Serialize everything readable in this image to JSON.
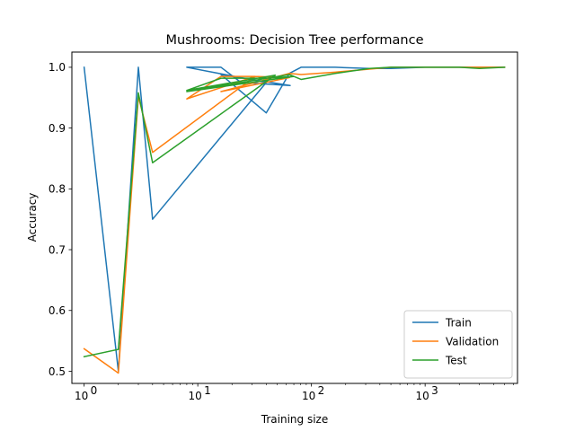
{
  "chart_data": {
    "type": "line",
    "title": "Mushrooms: Decision Tree performance",
    "xlabel": "Training size",
    "ylabel": "Accuracy",
    "xscale": "log",
    "xlim": [
      0.78,
      6500
    ],
    "ylim": [
      0.48,
      1.025
    ],
    "xticks": [
      1,
      10,
      100,
      1000
    ],
    "xtick_labels": [
      "10",
      "10",
      "10",
      "10"
    ],
    "xtick_exponents": [
      "0",
      "1",
      "2",
      "3"
    ],
    "yticks": [
      0.5,
      0.6,
      0.7,
      0.8,
      0.9,
      1.0
    ],
    "ytick_labels": [
      "0.5",
      "0.6",
      "0.7",
      "0.8",
      "0.9",
      "1.0"
    ],
    "grid": false,
    "legend_position": "lower right",
    "series": [
      {
        "name": "Train",
        "color": "#1f77b4",
        "points": [
          [
            1,
            1.0
          ],
          [
            2,
            0.5
          ],
          [
            3,
            1.0
          ],
          [
            4,
            0.75
          ],
          [
            40,
            0.975
          ],
          [
            8,
            1.0
          ],
          [
            16,
            1.0
          ],
          [
            24,
            0.975
          ],
          [
            65,
            0.97
          ],
          [
            16,
            0.988
          ],
          [
            40,
            0.925
          ],
          [
            64,
            0.99
          ],
          [
            81,
            1.0
          ],
          [
            162,
            1.0
          ],
          [
            324,
            0.998
          ],
          [
            500,
            0.998
          ],
          [
            1000,
            1.0
          ],
          [
            2000,
            1.0
          ],
          [
            4000,
            1.0
          ],
          [
            5000,
            1.0
          ]
        ]
      },
      {
        "name": "Validation",
        "color": "#ff7f0e",
        "points": [
          [
            1,
            0.537
          ],
          [
            2,
            0.497
          ],
          [
            3,
            0.952
          ],
          [
            4,
            0.86
          ],
          [
            32,
            0.985
          ],
          [
            8,
            0.948
          ],
          [
            16,
            0.985
          ],
          [
            32,
            0.985
          ],
          [
            64,
            0.983
          ],
          [
            16,
            0.96
          ],
          [
            64,
            0.99
          ],
          [
            81,
            0.988
          ],
          [
            162,
            0.992
          ],
          [
            324,
            0.997
          ],
          [
            500,
            1.0
          ],
          [
            1000,
            1.0
          ],
          [
            2000,
            1.0
          ],
          [
            4000,
            1.0
          ],
          [
            5000,
            1.0
          ]
        ]
      },
      {
        "name": "Test",
        "color": "#2ca02c",
        "points": [
          [
            1,
            0.524
          ],
          [
            2,
            0.536
          ],
          [
            3,
            0.958
          ],
          [
            4,
            0.843
          ],
          [
            48,
            0.987
          ],
          [
            8,
            0.962
          ],
          [
            16,
            0.982
          ],
          [
            40,
            0.982
          ],
          [
            70,
            0.985
          ],
          [
            8,
            0.96
          ],
          [
            64,
            0.988
          ],
          [
            81,
            0.98
          ],
          [
            162,
            0.99
          ],
          [
            324,
            0.998
          ],
          [
            500,
            1.0
          ],
          [
            1000,
            1.0
          ],
          [
            2000,
            1.0
          ],
          [
            3000,
            0.998
          ],
          [
            5000,
            1.0
          ]
        ]
      }
    ]
  }
}
